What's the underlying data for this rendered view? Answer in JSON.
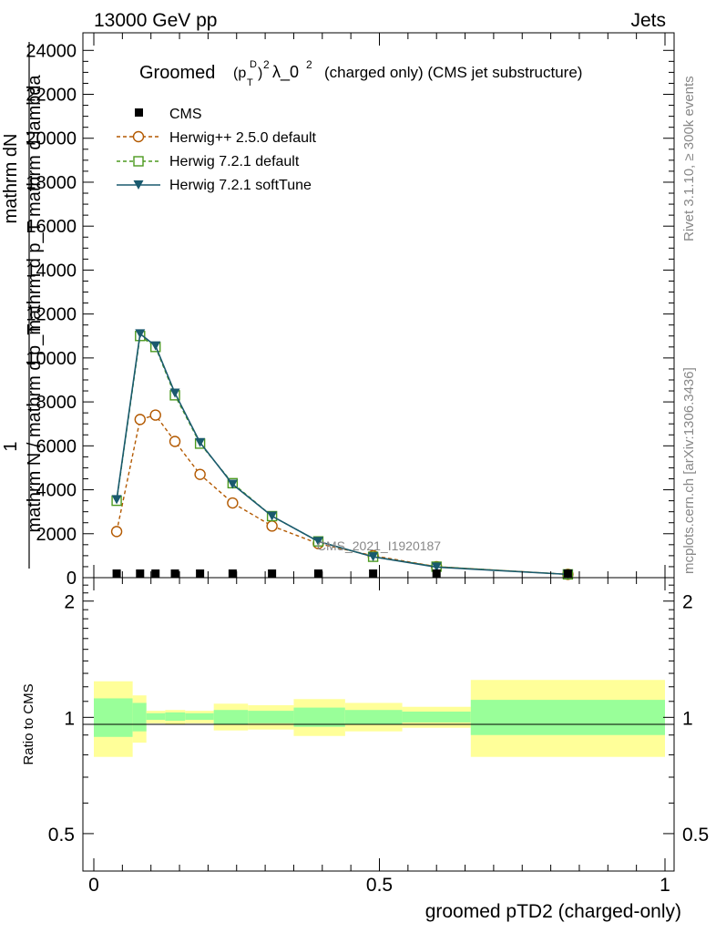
{
  "header": {
    "energy_label": "13000 GeV pp",
    "category_label": "Jets"
  },
  "side_labels": {
    "rivet": "Rivet 3.1.10, ≥ 300k events",
    "mcplots": "mcplots.cern.ch [arXiv:1306.3436]"
  },
  "watermark": "CMS_2021_I1920187",
  "colors": {
    "data": "#000000",
    "herwigpp": "#b35900",
    "herwig721": "#4c9a1f",
    "softtune": "#1a5a6e",
    "band_inner": "#99ff99",
    "band_outer": "#ffff99"
  },
  "chart_data": [
    {
      "type": "line",
      "panel": "main",
      "title": "Groomed (p_T^D)^2 λ_0^2  (charged only) (CMS jet substructure)",
      "title_parts": {
        "lead": "Groomed",
        "p": "(p",
        "sup_d": "D",
        "sub_t": "T",
        "close": ")",
        "pow": "2",
        "lambda": "λ_0",
        "tail": "(charged only) (CMS jet substructure)"
      },
      "ylabel_parts": {
        "one": "1",
        "numerator": "mathrm d^2N",
        "denominator": "mathrm d p_T mathrm d lambda",
        "left_numerator": "mathrm dN",
        "left_denominator": "mathrm N / mathrm d p_T"
      },
      "xlabel": "",
      "xlim": [
        0,
        1
      ],
      "ylim": [
        0,
        24800
      ],
      "yticks": [
        0,
        2000,
        4000,
        6000,
        8000,
        10000,
        12000,
        14000,
        16000,
        18000,
        20000,
        22000,
        24000
      ],
      "ytick_labels": [
        "0",
        "2000",
        "4000",
        "6000",
        "8000",
        "10000",
        "12000",
        "14000",
        "16000",
        "18000",
        "20000",
        "22000",
        "24000"
      ],
      "legend_position": "top-left",
      "series": [
        {
          "name": "CMS",
          "style": "data",
          "x": [
            0.04,
            0.081,
            0.108,
            0.142,
            0.186,
            0.243,
            0.312,
            0.393,
            0.489,
            0.6,
            0.83
          ],
          "values": [
            80,
            80,
            80,
            80,
            80,
            80,
            80,
            80,
            80,
            80,
            80
          ]
        },
        {
          "name": "Herwig++ 2.5.0 default",
          "style": "herwigpp",
          "x": [
            0.04,
            0.081,
            0.108,
            0.142,
            0.186,
            0.243,
            0.312,
            0.393,
            0.489,
            0.6,
            0.83
          ],
          "values": [
            2100,
            7200,
            7400,
            6200,
            4700,
            3400,
            2350,
            1550,
            1000,
            500,
            150
          ]
        },
        {
          "name": "Herwig 7.2.1 default",
          "style": "herwig721",
          "x": [
            0.04,
            0.081,
            0.108,
            0.142,
            0.186,
            0.243,
            0.312,
            0.393,
            0.489,
            0.6,
            0.83
          ],
          "values": [
            3500,
            11000,
            10500,
            8300,
            6100,
            4300,
            2800,
            1650,
            950,
            500,
            150
          ]
        },
        {
          "name": "Herwig 7.2.1 softTune",
          "style": "softtune",
          "x": [
            0.04,
            0.081,
            0.108,
            0.142,
            0.186,
            0.243,
            0.312,
            0.393,
            0.489,
            0.6,
            0.83
          ],
          "values": [
            3550,
            11100,
            10550,
            8400,
            6150,
            4250,
            2800,
            1650,
            950,
            480,
            150
          ]
        }
      ]
    },
    {
      "type": "area",
      "panel": "ratio",
      "xlabel": "groomed pTD2 (charged-only)",
      "ylabel": "Ratio to CMS",
      "xlim": [
        0,
        1
      ],
      "ylim": [
        0.4,
        2.3
      ],
      "xticks": [
        0,
        0.5,
        1
      ],
      "xtick_labels": [
        "0",
        "0.5",
        "1"
      ],
      "yticks": [
        0.5,
        1,
        2
      ],
      "ytick_labels": [
        "0.5",
        "1",
        "2"
      ],
      "ref_line": 1,
      "bins": [
        {
          "x0": 0.0,
          "x1": 0.068,
          "inner_lo": 0.89,
          "inner_hi": 1.12,
          "outer_lo": 0.79,
          "outer_hi": 1.24
        },
        {
          "x0": 0.068,
          "x1": 0.092,
          "inner_lo": 0.92,
          "inner_hi": 1.09,
          "outer_lo": 0.86,
          "outer_hi": 1.14
        },
        {
          "x0": 0.092,
          "x1": 0.125,
          "inner_lo": 0.985,
          "inner_hi": 1.025,
          "outer_lo": 0.965,
          "outer_hi": 1.04
        },
        {
          "x0": 0.125,
          "x1": 0.16,
          "inner_lo": 0.98,
          "inner_hi": 1.03,
          "outer_lo": 0.96,
          "outer_hi": 1.045
        },
        {
          "x0": 0.16,
          "x1": 0.21,
          "inner_lo": 0.985,
          "inner_hi": 1.025,
          "outer_lo": 0.965,
          "outer_hi": 1.04
        },
        {
          "x0": 0.21,
          "x1": 0.27,
          "inner_lo": 0.96,
          "inner_hi": 1.045,
          "outer_lo": 0.925,
          "outer_hi": 1.085
        },
        {
          "x0": 0.27,
          "x1": 0.35,
          "inner_lo": 0.965,
          "inner_hi": 1.04,
          "outer_lo": 0.93,
          "outer_hi": 1.075
        },
        {
          "x0": 0.35,
          "x1": 0.44,
          "inner_lo": 0.945,
          "inner_hi": 1.06,
          "outer_lo": 0.895,
          "outer_hi": 1.115
        },
        {
          "x0": 0.44,
          "x1": 0.54,
          "inner_lo": 0.96,
          "inner_hi": 1.045,
          "outer_lo": 0.92,
          "outer_hi": 1.09
        },
        {
          "x0": 0.54,
          "x1": 0.66,
          "inner_lo": 0.97,
          "inner_hi": 1.035,
          "outer_lo": 0.94,
          "outer_hi": 1.065
        },
        {
          "x0": 0.66,
          "x1": 1.0,
          "inner_lo": 0.9,
          "inner_hi": 1.11,
          "outer_lo": 0.79,
          "outer_hi": 1.25
        }
      ]
    }
  ]
}
